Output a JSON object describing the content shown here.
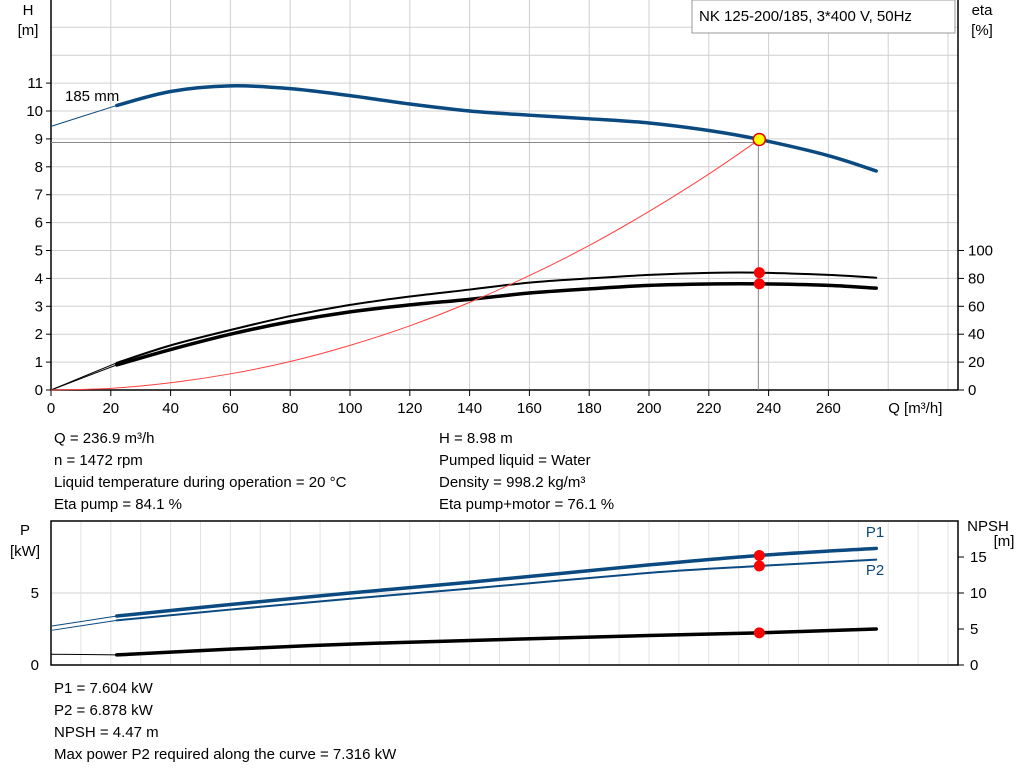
{
  "colors": {
    "head": "#0b4a80",
    "power": "#0b4a80",
    "efficiency": "#000000",
    "system": "#ff4040",
    "marker": "#ff0000",
    "duty": "#ffff00",
    "grid": "#d0d0d0"
  },
  "title_box": "NK 125-200/185, 3*400 V, 50Hz",
  "info_top": {
    "left": [
      "Q = 236.9 m³/h",
      "n = 1472 rpm",
      "Liquid temperature during operation = 20 °C",
      "Eta pump = 84.1 %"
    ],
    "right": [
      "H = 8.98 m",
      "Pumped liquid = Water",
      "Density = 998.2 kg/m³",
      "Eta pump+motor = 76.1 %"
    ]
  },
  "info_bottom": [
    "P1 = 7.604 kW",
    "P2 = 6.878 kW",
    "NPSH = 4.47 m",
    "Max power P2 required along the curve = 7.316 kW"
  ],
  "chart_data": [
    {
      "type": "line",
      "xlabel": "Q [m³/h]",
      "ylabel": "H\n[m]",
      "ylabel_right": "eta\n[%]",
      "xlim": [
        0,
        300
      ],
      "ylim": [
        0,
        14
      ],
      "ylim_right": [
        0,
        280
      ],
      "x_ticks": [
        0,
        20,
        40,
        60,
        80,
        100,
        120,
        140,
        160,
        180,
        200,
        220,
        240,
        260
      ],
      "y_ticks": [
        0,
        1,
        2,
        3,
        4,
        5,
        6,
        7,
        8,
        9,
        10,
        11
      ],
      "y_ticks_right": [
        0,
        20,
        40,
        60,
        80,
        100
      ],
      "grid": true,
      "annotation": "185 mm",
      "duty_point": {
        "Q": 236.9,
        "H": 8.98,
        "eta_pump": 84.1,
        "eta_pump_motor": 76.1
      },
      "series": [
        {
          "key": "head",
          "axis": "left",
          "x": [
            0,
            22,
            40,
            60,
            80,
            100,
            120,
            140,
            160,
            180,
            200,
            220,
            236.9,
            260,
            276
          ],
          "y": [
            9.45,
            10.2,
            10.7,
            10.9,
            10.8,
            10.55,
            10.25,
            10.0,
            9.85,
            9.72,
            9.57,
            9.3,
            8.98,
            8.4,
            7.85
          ]
        },
        {
          "key": "eta_pump",
          "axis": "right",
          "x": [
            0,
            22,
            40,
            60,
            80,
            100,
            120,
            140,
            160,
            180,
            200,
            220,
            236.9,
            260,
            276
          ],
          "y": [
            0,
            19.5,
            32,
            43,
            53,
            61,
            67,
            72,
            77,
            80,
            82.5,
            84,
            84.1,
            82.5,
            80.5
          ]
        },
        {
          "key": "eta_pump_motor",
          "axis": "right",
          "x": [
            0,
            22,
            40,
            60,
            80,
            100,
            120,
            140,
            160,
            180,
            200,
            220,
            236.9,
            260,
            276
          ],
          "y": [
            0,
            18,
            29,
            40,
            49,
            56,
            61,
            65,
            69.5,
            72.5,
            75,
            76,
            76.1,
            75,
            73
          ]
        },
        {
          "key": "system",
          "axis": "left",
          "x": [
            0,
            20,
            40,
            60,
            80,
            100,
            120,
            140,
            160,
            180,
            200,
            220,
            236.9
          ],
          "y": [
            0,
            0.06,
            0.26,
            0.58,
            1.02,
            1.6,
            2.3,
            3.14,
            4.1,
            5.18,
            6.4,
            7.74,
            8.98
          ]
        }
      ]
    },
    {
      "type": "line",
      "ylabel": "P\n[kW]",
      "ylabel_right": "NPSH\n[m]",
      "xlim": [
        0,
        300
      ],
      "ylim": [
        0,
        10
      ],
      "ylim_right": [
        0,
        20
      ],
      "y_ticks": [
        0,
        5
      ],
      "y_ticks_right": [
        0,
        5,
        10,
        15
      ],
      "grid": true,
      "series": [
        {
          "key": "p1",
          "name": "P1",
          "axis": "left",
          "x": [
            0,
            22,
            60,
            100,
            140,
            200,
            236.9,
            276
          ],
          "y": [
            2.7,
            3.4,
            4.2,
            5.0,
            5.75,
            6.95,
            7.604,
            8.1
          ]
        },
        {
          "key": "p2",
          "name": "P2",
          "axis": "left",
          "x": [
            0,
            22,
            60,
            100,
            140,
            200,
            236.9,
            276
          ],
          "y": [
            2.4,
            3.1,
            3.85,
            4.6,
            5.3,
            6.4,
            6.878,
            7.316
          ]
        },
        {
          "key": "npsh",
          "axis": "right",
          "x": [
            0,
            22,
            60,
            100,
            140,
            200,
            236.9,
            276
          ],
          "y": [
            1.5,
            1.4,
            2.2,
            2.9,
            3.4,
            4.1,
            4.47,
            5.0
          ]
        }
      ]
    }
  ]
}
